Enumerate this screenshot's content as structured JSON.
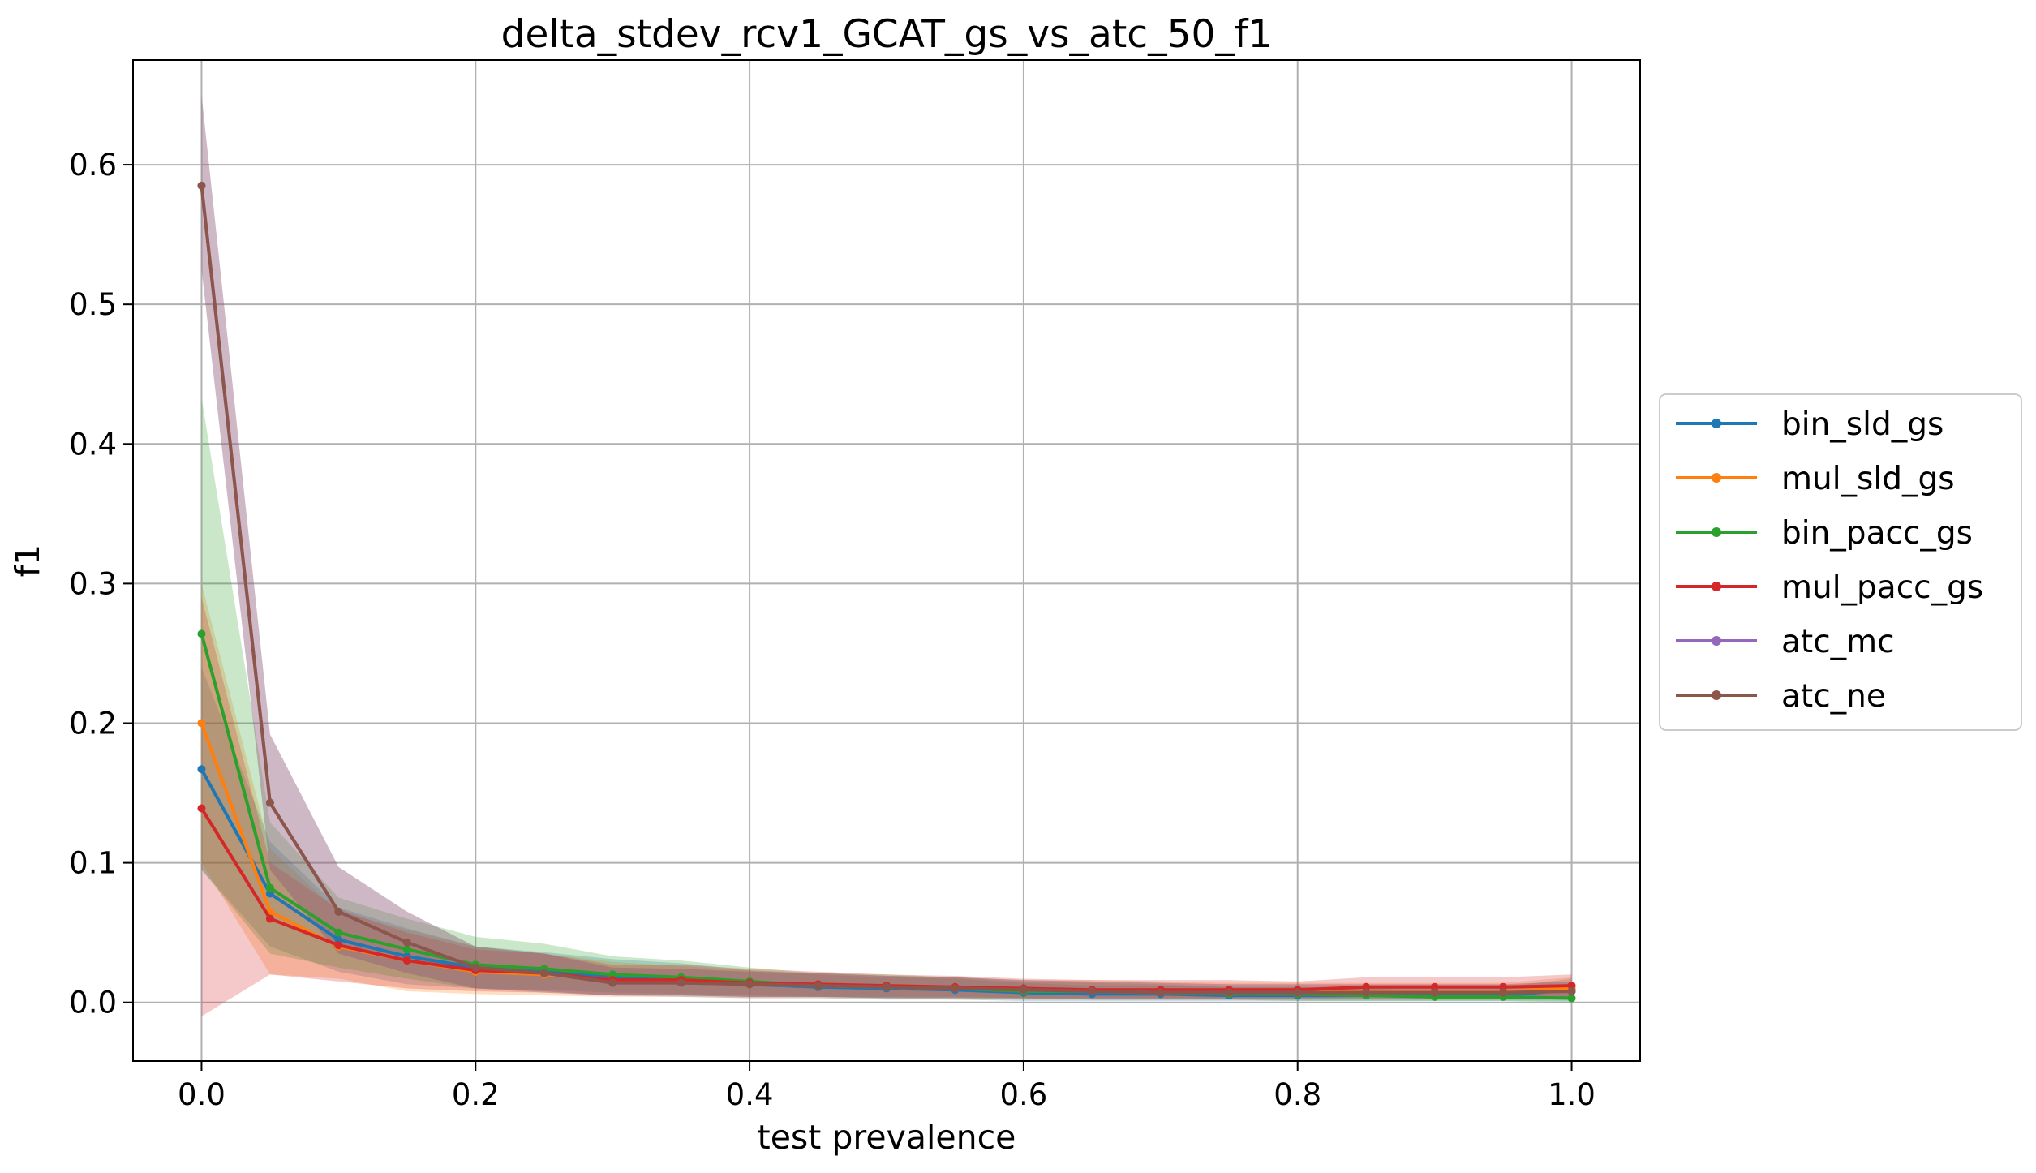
{
  "chart_data": {
    "type": "line",
    "title": "delta_stdev_rcv1_GCAT_gs_vs_atc_50_f1",
    "xlabel": "test prevalence",
    "ylabel": "f1",
    "xlim": [
      -0.05,
      1.05
    ],
    "ylim": [
      -0.042,
      0.675
    ],
    "xticks": [
      0.0,
      0.2,
      0.4,
      0.6,
      0.8,
      1.0
    ],
    "xtick_labels": [
      "0.0",
      "0.2",
      "0.4",
      "0.6",
      "0.8",
      "1.0"
    ],
    "yticks": [
      0.0,
      0.1,
      0.2,
      0.3,
      0.4,
      0.5,
      0.6
    ],
    "ytick_labels": [
      "0.0",
      "0.1",
      "0.2",
      "0.3",
      "0.4",
      "0.5",
      "0.6"
    ],
    "grid": true,
    "legend_position": "center right, outside plot",
    "x": [
      0.0,
      0.05,
      0.1,
      0.15,
      0.2,
      0.25,
      0.3,
      0.35,
      0.4,
      0.45,
      0.5,
      0.55,
      0.6,
      0.65,
      0.7,
      0.75,
      0.8,
      0.85,
      0.9,
      0.95,
      1.0
    ],
    "series": [
      {
        "name": "bin_sld_gs",
        "color": "#1f77b4",
        "values": [
          0.167,
          0.078,
          0.045,
          0.033,
          0.025,
          0.022,
          0.018,
          0.016,
          0.013,
          0.011,
          0.01,
          0.009,
          0.007,
          0.006,
          0.006,
          0.005,
          0.005,
          0.005,
          0.005,
          0.005,
          0.009
        ],
        "band": [
          [
            0.095,
            0.24
          ],
          [
            0.04,
            0.115
          ],
          [
            0.022,
            0.068
          ],
          [
            0.013,
            0.053
          ],
          [
            0.01,
            0.04
          ],
          [
            0.007,
            0.036
          ],
          [
            0.005,
            0.031
          ],
          [
            0.004,
            0.028
          ],
          [
            0.003,
            0.023
          ],
          [
            0.003,
            0.02
          ],
          [
            0.002,
            0.018
          ],
          [
            0.002,
            0.017
          ],
          [
            0.001,
            0.014
          ],
          [
            0.001,
            0.012
          ],
          [
            0.001,
            0.012
          ],
          [
            0.001,
            0.011
          ],
          [
            0.001,
            0.011
          ],
          [
            0.001,
            0.011
          ],
          [
            0.001,
            0.011
          ],
          [
            0.001,
            0.011
          ],
          [
            0.001,
            0.017
          ]
        ]
      },
      {
        "name": "mul_sld_gs",
        "color": "#ff7f0e",
        "values": [
          0.2,
          0.065,
          0.04,
          0.03,
          0.022,
          0.02,
          0.016,
          0.015,
          0.013,
          0.012,
          0.011,
          0.01,
          0.009,
          0.009,
          0.008,
          0.008,
          0.008,
          0.008,
          0.008,
          0.008,
          0.01
        ],
        "band": [
          [
            0.1,
            0.3
          ],
          [
            0.02,
            0.11
          ],
          [
            0.017,
            0.065
          ],
          [
            0.008,
            0.052
          ],
          [
            0.006,
            0.04
          ],
          [
            0.005,
            0.035
          ],
          [
            0.004,
            0.029
          ],
          [
            0.004,
            0.026
          ],
          [
            0.003,
            0.023
          ],
          [
            0.003,
            0.021
          ],
          [
            0.003,
            0.019
          ],
          [
            0.002,
            0.018
          ],
          [
            0.002,
            0.016
          ],
          [
            0.002,
            0.016
          ],
          [
            0.002,
            0.015
          ],
          [
            0.002,
            0.014
          ],
          [
            0.002,
            0.014
          ],
          [
            0.002,
            0.014
          ],
          [
            0.002,
            0.014
          ],
          [
            0.002,
            0.014
          ],
          [
            0.002,
            0.018
          ]
        ]
      },
      {
        "name": "bin_pacc_gs",
        "color": "#2ca02c",
        "values": [
          0.264,
          0.082,
          0.05,
          0.038,
          0.027,
          0.024,
          0.02,
          0.018,
          0.015,
          0.012,
          0.011,
          0.01,
          0.008,
          0.008,
          0.007,
          0.006,
          0.006,
          0.005,
          0.004,
          0.004,
          0.003
        ],
        "band": [
          [
            0.095,
            0.433
          ],
          [
            0.035,
            0.129
          ],
          [
            0.025,
            0.075
          ],
          [
            0.017,
            0.06
          ],
          [
            0.01,
            0.047
          ],
          [
            0.009,
            0.042
          ],
          [
            0.007,
            0.033
          ],
          [
            0.006,
            0.03
          ],
          [
            0.005,
            0.025
          ],
          [
            0.004,
            0.021
          ],
          [
            0.003,
            0.02
          ],
          [
            0.003,
            0.018
          ],
          [
            0.002,
            0.015
          ],
          [
            0.002,
            0.014
          ],
          [
            0.002,
            0.013
          ],
          [
            0.002,
            0.011
          ],
          [
            0.001,
            0.011
          ],
          [
            0.001,
            0.01
          ],
          [
            0.001,
            0.008
          ],
          [
            0.001,
            0.008
          ],
          [
            0.0,
            0.007
          ]
        ]
      },
      {
        "name": "mul_pacc_gs",
        "color": "#d62728",
        "values": [
          0.139,
          0.06,
          0.041,
          0.03,
          0.023,
          0.021,
          0.016,
          0.016,
          0.014,
          0.013,
          0.012,
          0.011,
          0.01,
          0.009,
          0.009,
          0.009,
          0.009,
          0.011,
          0.011,
          0.011,
          0.012
        ],
        "band": [
          [
            -0.01,
            0.29
          ],
          [
            0.02,
            0.1
          ],
          [
            0.015,
            0.067
          ],
          [
            0.01,
            0.05
          ],
          [
            0.008,
            0.038
          ],
          [
            0.007,
            0.035
          ],
          [
            0.005,
            0.027
          ],
          [
            0.005,
            0.027
          ],
          [
            0.004,
            0.024
          ],
          [
            0.004,
            0.022
          ],
          [
            0.004,
            0.02
          ],
          [
            0.004,
            0.019
          ],
          [
            0.003,
            0.017
          ],
          [
            0.003,
            0.016
          ],
          [
            0.003,
            0.016
          ],
          [
            0.003,
            0.016
          ],
          [
            0.003,
            0.015
          ],
          [
            0.004,
            0.018
          ],
          [
            0.004,
            0.018
          ],
          [
            0.004,
            0.018
          ],
          [
            0.004,
            0.02
          ]
        ]
      },
      {
        "name": "atc_mc",
        "color": "#9467bd",
        "values": [
          0.585,
          0.143,
          0.065,
          0.043,
          0.025,
          0.021,
          0.014,
          0.014,
          0.013,
          0.012,
          0.011,
          0.01,
          0.009,
          0.008,
          0.007,
          0.007,
          0.007,
          0.007,
          0.007,
          0.007,
          0.008
        ],
        "band": [
          [
            0.525,
            0.65
          ],
          [
            0.095,
            0.192
          ],
          [
            0.035,
            0.097
          ],
          [
            0.021,
            0.065
          ],
          [
            0.01,
            0.04
          ],
          [
            0.008,
            0.035
          ],
          [
            0.005,
            0.025
          ],
          [
            0.005,
            0.024
          ],
          [
            0.004,
            0.022
          ],
          [
            0.004,
            0.021
          ],
          [
            0.003,
            0.019
          ],
          [
            0.003,
            0.018
          ],
          [
            0.003,
            0.016
          ],
          [
            0.002,
            0.015
          ],
          [
            0.002,
            0.014
          ],
          [
            0.002,
            0.013
          ],
          [
            0.002,
            0.013
          ],
          [
            0.002,
            0.013
          ],
          [
            0.002,
            0.013
          ],
          [
            0.002,
            0.013
          ],
          [
            0.002,
            0.015
          ]
        ]
      },
      {
        "name": "atc_ne",
        "color": "#8c564b",
        "values": [
          0.585,
          0.143,
          0.065,
          0.043,
          0.025,
          0.021,
          0.014,
          0.014,
          0.013,
          0.012,
          0.011,
          0.01,
          0.009,
          0.008,
          0.007,
          0.007,
          0.007,
          0.007,
          0.007,
          0.007,
          0.008
        ],
        "band": [
          [
            0.525,
            0.65
          ],
          [
            0.095,
            0.192
          ],
          [
            0.035,
            0.097
          ],
          [
            0.021,
            0.065
          ],
          [
            0.01,
            0.04
          ],
          [
            0.008,
            0.035
          ],
          [
            0.005,
            0.025
          ],
          [
            0.005,
            0.024
          ],
          [
            0.004,
            0.022
          ],
          [
            0.004,
            0.021
          ],
          [
            0.003,
            0.019
          ],
          [
            0.003,
            0.018
          ],
          [
            0.003,
            0.016
          ],
          [
            0.002,
            0.015
          ],
          [
            0.002,
            0.014
          ],
          [
            0.002,
            0.013
          ],
          [
            0.002,
            0.013
          ],
          [
            0.002,
            0.013
          ],
          [
            0.002,
            0.013
          ],
          [
            0.002,
            0.013
          ],
          [
            0.002,
            0.015
          ]
        ]
      }
    ]
  }
}
